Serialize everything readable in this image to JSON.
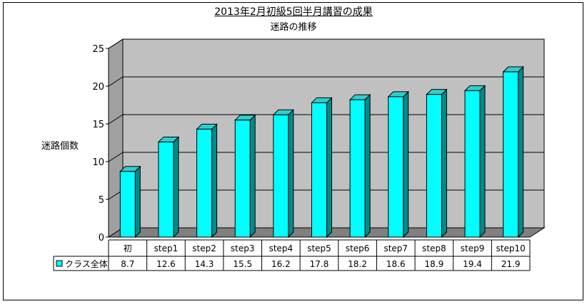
{
  "chart_data": {
    "type": "bar",
    "title": "2013年2月初級5回半月講習の成果",
    "subtitle": "迷路の推移",
    "ylabel": "迷路個数",
    "xlabel": "",
    "ylim": [
      0,
      25
    ],
    "yticks": [
      0,
      5,
      10,
      15,
      20,
      25
    ],
    "grid": true,
    "categories": [
      "初",
      "step1",
      "step2",
      "step3",
      "step4",
      "step5",
      "step6",
      "step7",
      "step8",
      "step9",
      "step10"
    ],
    "series": [
      {
        "name": "クラス全体",
        "values": [
          8.7,
          12.6,
          14.3,
          15.5,
          16.2,
          17.8,
          18.2,
          18.6,
          18.9,
          19.4,
          21.9
        ],
        "value_labels": [
          "8.7",
          "12.6",
          "14.3",
          "15.5",
          "16.2",
          "17.8",
          "18.2",
          "18.6",
          "18.9",
          "19.4",
          "21.9"
        ]
      }
    ],
    "colors": {
      "bar_front": "#00ffff",
      "bar_side": "#008b8b",
      "bar_top": "#33cccc",
      "back_wall": "#c0c0c0",
      "floor": "#808080",
      "left_wall": "#a0a0a0"
    }
  }
}
